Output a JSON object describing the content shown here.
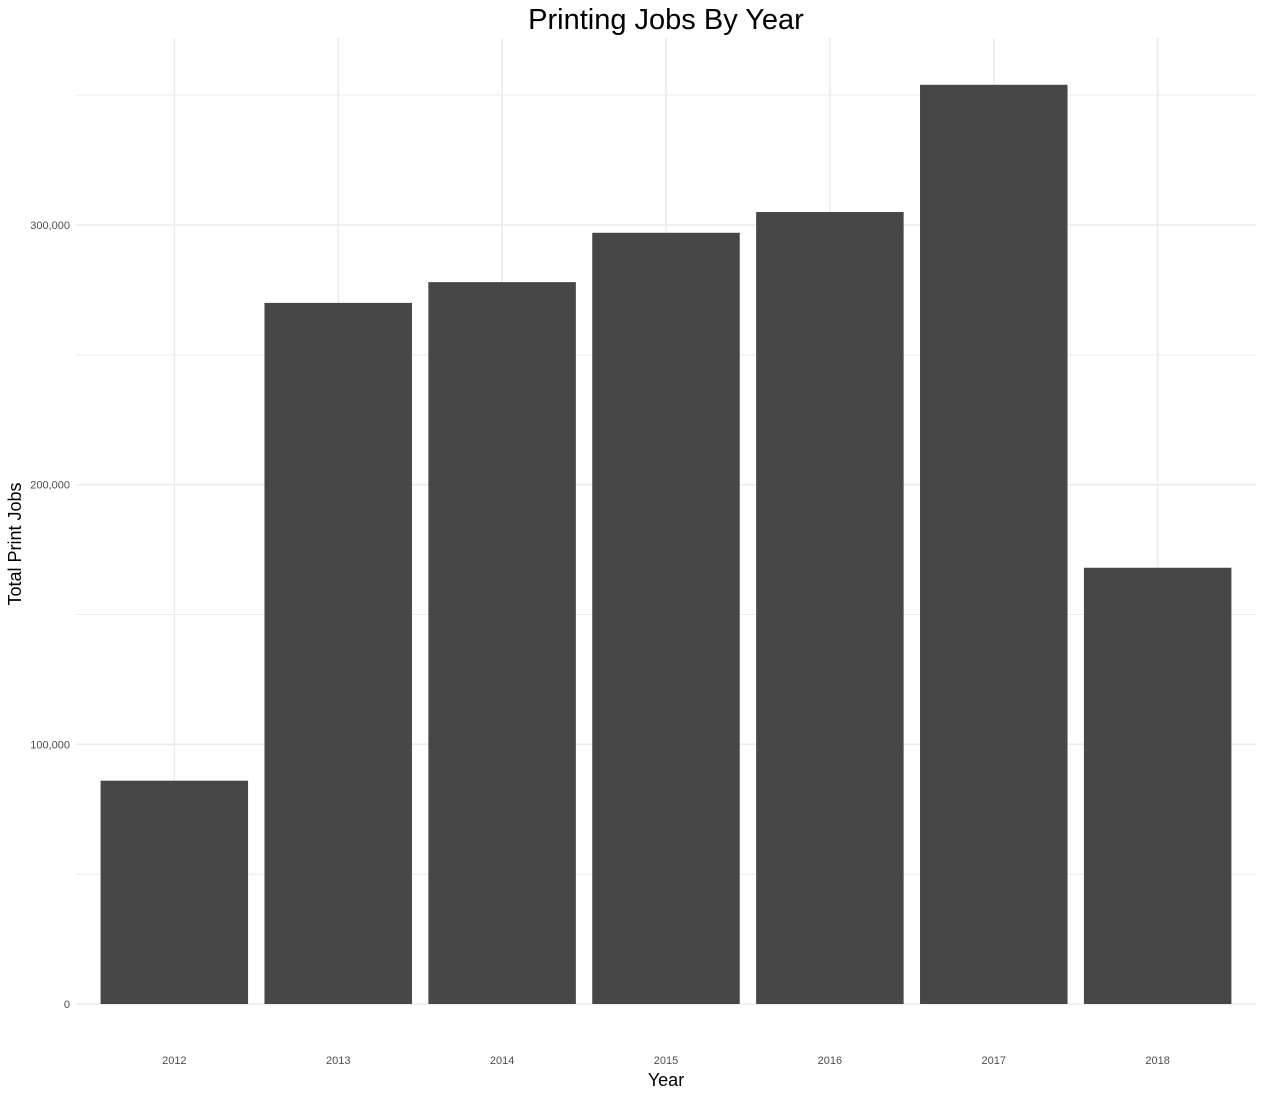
{
  "chart_data": {
    "type": "bar",
    "title": "Printing Jobs By Year",
    "xlabel": "Year",
    "ylabel": "Total Print Jobs",
    "categories": [
      "2012",
      "2013",
      "2014",
      "2015",
      "2016",
      "2017",
      "2018"
    ],
    "values": [
      86000,
      270000,
      278000,
      297000,
      305000,
      354000,
      168000
    ],
    "ylim": [
      0,
      375000
    ],
    "yticks": [
      0,
      100000,
      200000,
      300000
    ],
    "ytick_labels": [
      "0",
      "100,000",
      "200,000",
      "300,000"
    ],
    "grid": true,
    "bar_color": "#474747",
    "grid_color": "#ebebeb",
    "legend": "none"
  }
}
